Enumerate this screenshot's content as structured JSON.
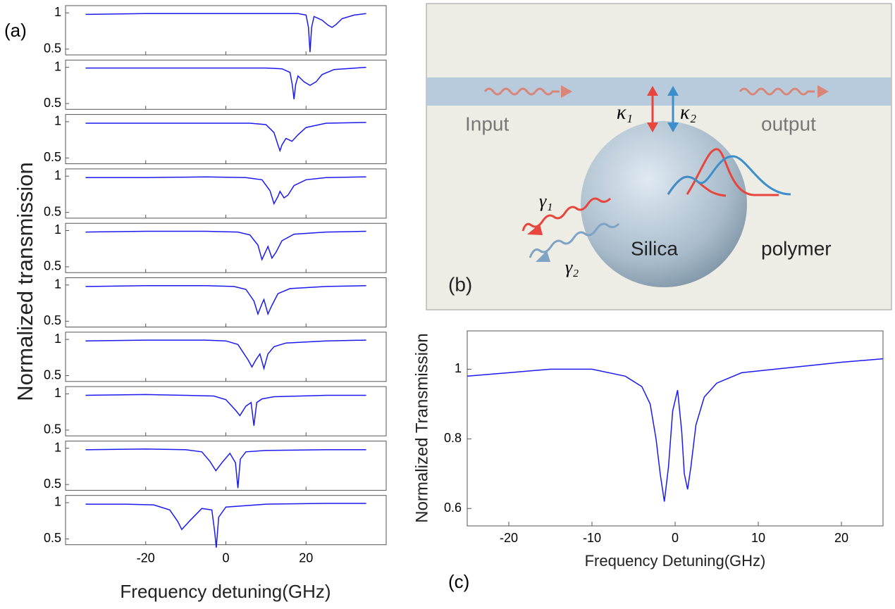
{
  "chart_data": [
    {
      "type": "line",
      "label": "(a)",
      "xlabel": "Frequency detuning(GHz)",
      "ylabel": "Normalized transmission",
      "xlim": [
        -40,
        40
      ],
      "xticks": [
        -20,
        0,
        20
      ],
      "ylim": [
        0.42,
        1.1
      ],
      "yticks": [
        0.5,
        1
      ],
      "color": "#1a1aee",
      "series": [
        {
          "x": [
            -35,
            -20,
            -5,
            10,
            18,
            20,
            20.6,
            21,
            21.4,
            22,
            24,
            25.5,
            26.5,
            27.5,
            29,
            32,
            35
          ],
          "values": [
            0.98,
            0.99,
            0.99,
            0.99,
            0.99,
            0.97,
            0.8,
            0.46,
            0.8,
            0.95,
            0.9,
            0.83,
            0.8,
            0.84,
            0.92,
            0.97,
            0.99
          ]
        },
        {
          "x": [
            -35,
            -20,
            -5,
            10,
            14,
            16,
            16.6,
            17,
            17.4,
            18,
            19.5,
            21,
            22.5,
            24,
            27,
            35
          ],
          "values": [
            0.99,
            0.99,
            0.99,
            0.99,
            0.98,
            0.93,
            0.75,
            0.56,
            0.76,
            0.88,
            0.8,
            0.75,
            0.8,
            0.9,
            0.97,
            1.0
          ]
        },
        {
          "x": [
            -35,
            -20,
            -5,
            6,
            10,
            12,
            13,
            13.5,
            14,
            15,
            16.5,
            18,
            20,
            25,
            35
          ],
          "values": [
            0.98,
            0.98,
            0.98,
            0.98,
            0.96,
            0.85,
            0.68,
            0.6,
            0.68,
            0.77,
            0.73,
            0.82,
            0.92,
            0.98,
            0.99
          ]
        },
        {
          "x": [
            -35,
            -20,
            -5,
            5,
            9,
            11,
            12,
            13,
            13.5,
            14.5,
            15.5,
            17,
            20,
            25,
            35
          ],
          "values": [
            0.98,
            0.98,
            0.99,
            0.98,
            0.95,
            0.8,
            0.62,
            0.72,
            0.79,
            0.7,
            0.74,
            0.87,
            0.95,
            0.98,
            0.99
          ]
        },
        {
          "x": [
            -35,
            -20,
            -5,
            3,
            6,
            8,
            9,
            10,
            10.5,
            11.5,
            12.5,
            14,
            17,
            25,
            35
          ],
          "values": [
            0.98,
            0.99,
            0.99,
            0.98,
            0.94,
            0.8,
            0.6,
            0.72,
            0.78,
            0.62,
            0.7,
            0.86,
            0.95,
            0.98,
            0.99
          ]
        },
        {
          "x": [
            -35,
            -20,
            -5,
            2,
            5,
            7,
            8,
            9,
            9.5,
            10.5,
            11.5,
            13,
            16,
            25,
            35
          ],
          "values": [
            0.98,
            0.99,
            0.99,
            0.98,
            0.94,
            0.78,
            0.6,
            0.74,
            0.8,
            0.6,
            0.72,
            0.88,
            0.95,
            0.98,
            0.99
          ]
        },
        {
          "x": [
            -35,
            -20,
            -5,
            0,
            3,
            5.5,
            6.5,
            7.5,
            8.5,
            9.5,
            10.5,
            12,
            15,
            25,
            35
          ],
          "values": [
            0.98,
            0.99,
            0.99,
            0.98,
            0.93,
            0.72,
            0.62,
            0.72,
            0.8,
            0.6,
            0.8,
            0.9,
            0.95,
            0.98,
            0.99
          ]
        },
        {
          "x": [
            -35,
            -20,
            -10,
            -3,
            0,
            2.5,
            3.5,
            5,
            6.3,
            7,
            7.7,
            9,
            12,
            25,
            35
          ],
          "values": [
            0.98,
            0.99,
            0.98,
            0.97,
            0.92,
            0.77,
            0.7,
            0.83,
            0.88,
            0.56,
            0.88,
            0.93,
            0.96,
            0.98,
            0.98
          ]
        },
        {
          "x": [
            -35,
            -20,
            -10,
            -6,
            -4,
            -2.5,
            -1,
            1,
            2.4,
            3,
            3.6,
            5,
            10,
            25,
            35
          ],
          "values": [
            0.98,
            0.99,
            0.98,
            0.95,
            0.82,
            0.69,
            0.8,
            0.93,
            0.8,
            0.45,
            0.85,
            0.95,
            0.97,
            0.98,
            0.98
          ]
        },
        {
          "x": [
            -35,
            -25,
            -18,
            -14,
            -12,
            -11,
            -9,
            -6,
            -3.5,
            -2.8,
            -2.4,
            -1.8,
            0,
            10,
            25,
            35
          ],
          "values": [
            0.98,
            0.98,
            0.97,
            0.9,
            0.74,
            0.63,
            0.75,
            0.92,
            0.9,
            0.6,
            0.38,
            0.8,
            0.94,
            0.98,
            0.99,
            0.99
          ]
        }
      ]
    },
    {
      "type": "line",
      "label": "(c)",
      "xlabel": "Frequency Detuning(GHz)",
      "ylabel": "Normalized Transmission",
      "xlim": [
        -25,
        25
      ],
      "xticks": [
        -20,
        -10,
        0,
        10,
        20
      ],
      "ylim": [
        0.55,
        1.11
      ],
      "yticks": [
        0.6,
        0.8,
        1
      ],
      "color": "#1a1aee",
      "series": [
        {
          "x": [
            -25,
            -20,
            -15,
            -10,
            -6,
            -4,
            -3,
            -2.3,
            -1.8,
            -1.3,
            -0.8,
            -0.3,
            0.3,
            0.8,
            1.1,
            1.5,
            1.9,
            2.5,
            3.5,
            5,
            8,
            12,
            16,
            20,
            25
          ],
          "values": [
            0.98,
            0.99,
            1.0,
            1.0,
            0.98,
            0.95,
            0.9,
            0.8,
            0.7,
            0.62,
            0.72,
            0.88,
            0.94,
            0.82,
            0.7,
            0.655,
            0.72,
            0.84,
            0.92,
            0.96,
            0.99,
            1.0,
            1.01,
            1.02,
            1.03
          ]
        }
      ]
    }
  ],
  "diagram": {
    "label": "(b)",
    "input": "Input",
    "output": "output",
    "kappa_1": "κ₁",
    "kappa_2": "κ₂",
    "gamma_1": "γ₁",
    "gamma_2": "γ₂",
    "core": "Silica",
    "shell": "polymer"
  }
}
